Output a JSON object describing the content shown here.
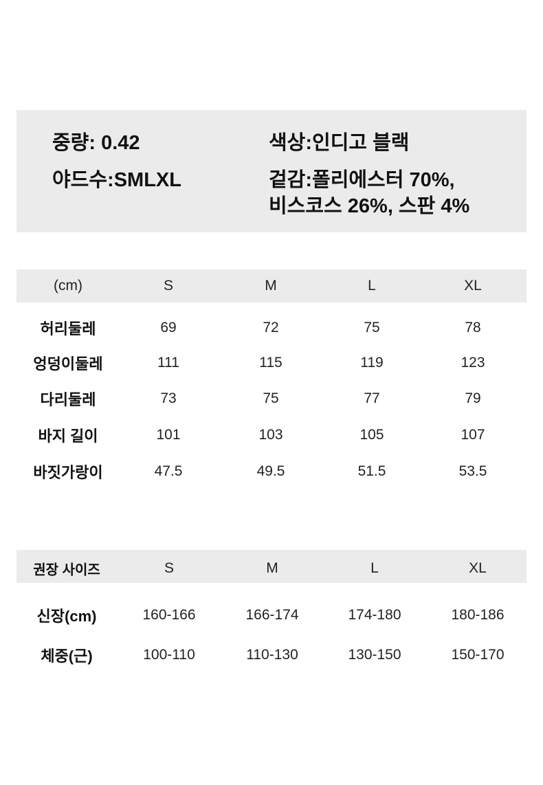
{
  "info": {
    "weight": "중량: 0.42",
    "color": "색상:인디고 블랙",
    "sizes": "야드수:SMLXL",
    "material_line1": "겉감:폴리에스터 70%,",
    "material_line2": "비스코스 26%, 스판 4%"
  },
  "measurements": {
    "headers": [
      "(cm)",
      "S",
      "M",
      "L",
      "XL"
    ],
    "rows": [
      {
        "label": "허리둘레",
        "values": [
          "69",
          "72",
          "75",
          "78"
        ]
      },
      {
        "label": "엉덩이둘레",
        "values": [
          "111",
          "115",
          "119",
          "123"
        ]
      },
      {
        "label": "다리둘레",
        "values": [
          "73",
          "75",
          "77",
          "79"
        ]
      },
      {
        "label": "바지 길이",
        "values": [
          "101",
          "103",
          "105",
          "107"
        ]
      },
      {
        "label": "바짓가랑이",
        "values": [
          "47.5",
          "49.5",
          "51.5",
          "53.5"
        ]
      }
    ]
  },
  "recommended": {
    "headers": [
      "권장 사이즈",
      "S",
      "M",
      "L",
      "XL"
    ],
    "rows": [
      {
        "label": "신장(cm)",
        "values": [
          "160-166",
          "166-174",
          "174-180",
          "180-186"
        ]
      },
      {
        "label": "체중(근)",
        "values": [
          "100-110",
          "110-130",
          "130-150",
          "150-170"
        ]
      }
    ]
  }
}
